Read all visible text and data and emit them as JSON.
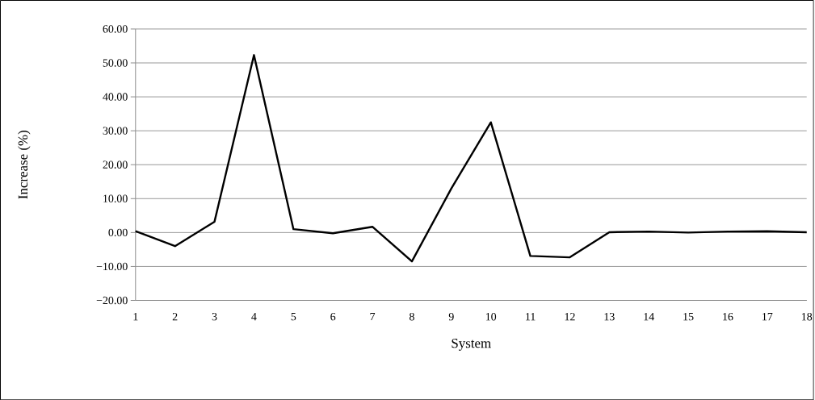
{
  "chart_data": {
    "type": "line",
    "xlabel": "System",
    "ylabel": "Increase (%)",
    "categories": [
      "1",
      "2",
      "3",
      "4",
      "5",
      "6",
      "7",
      "8",
      "9",
      "10",
      "11",
      "12",
      "13",
      "14",
      "15",
      "16",
      "17",
      "18"
    ],
    "series": [
      {
        "color": "#000000",
        "values": [
          0.4,
          -4.0,
          3.2,
          52.3,
          1.0,
          -0.2,
          1.7,
          -8.5,
          13.0,
          32.5,
          -6.9,
          -7.3,
          0.1,
          0.3,
          0.0,
          0.3,
          0.4,
          0.1
        ]
      }
    ],
    "ylim": [
      -20,
      60
    ],
    "yticks": [
      {
        "value": -20,
        "label": "−20.00"
      },
      {
        "value": -10,
        "label": "−10.00"
      },
      {
        "value": 0,
        "label": "0.00"
      },
      {
        "value": 10,
        "label": "10.00"
      },
      {
        "value": 20,
        "label": "20.00"
      },
      {
        "value": 30,
        "label": "30.00"
      },
      {
        "value": 40,
        "label": "40.00"
      },
      {
        "value": 50,
        "label": "50.00"
      },
      {
        "value": 60,
        "label": "60.00"
      }
    ],
    "grid": "y",
    "marker": "none",
    "line_style": "solid"
  }
}
